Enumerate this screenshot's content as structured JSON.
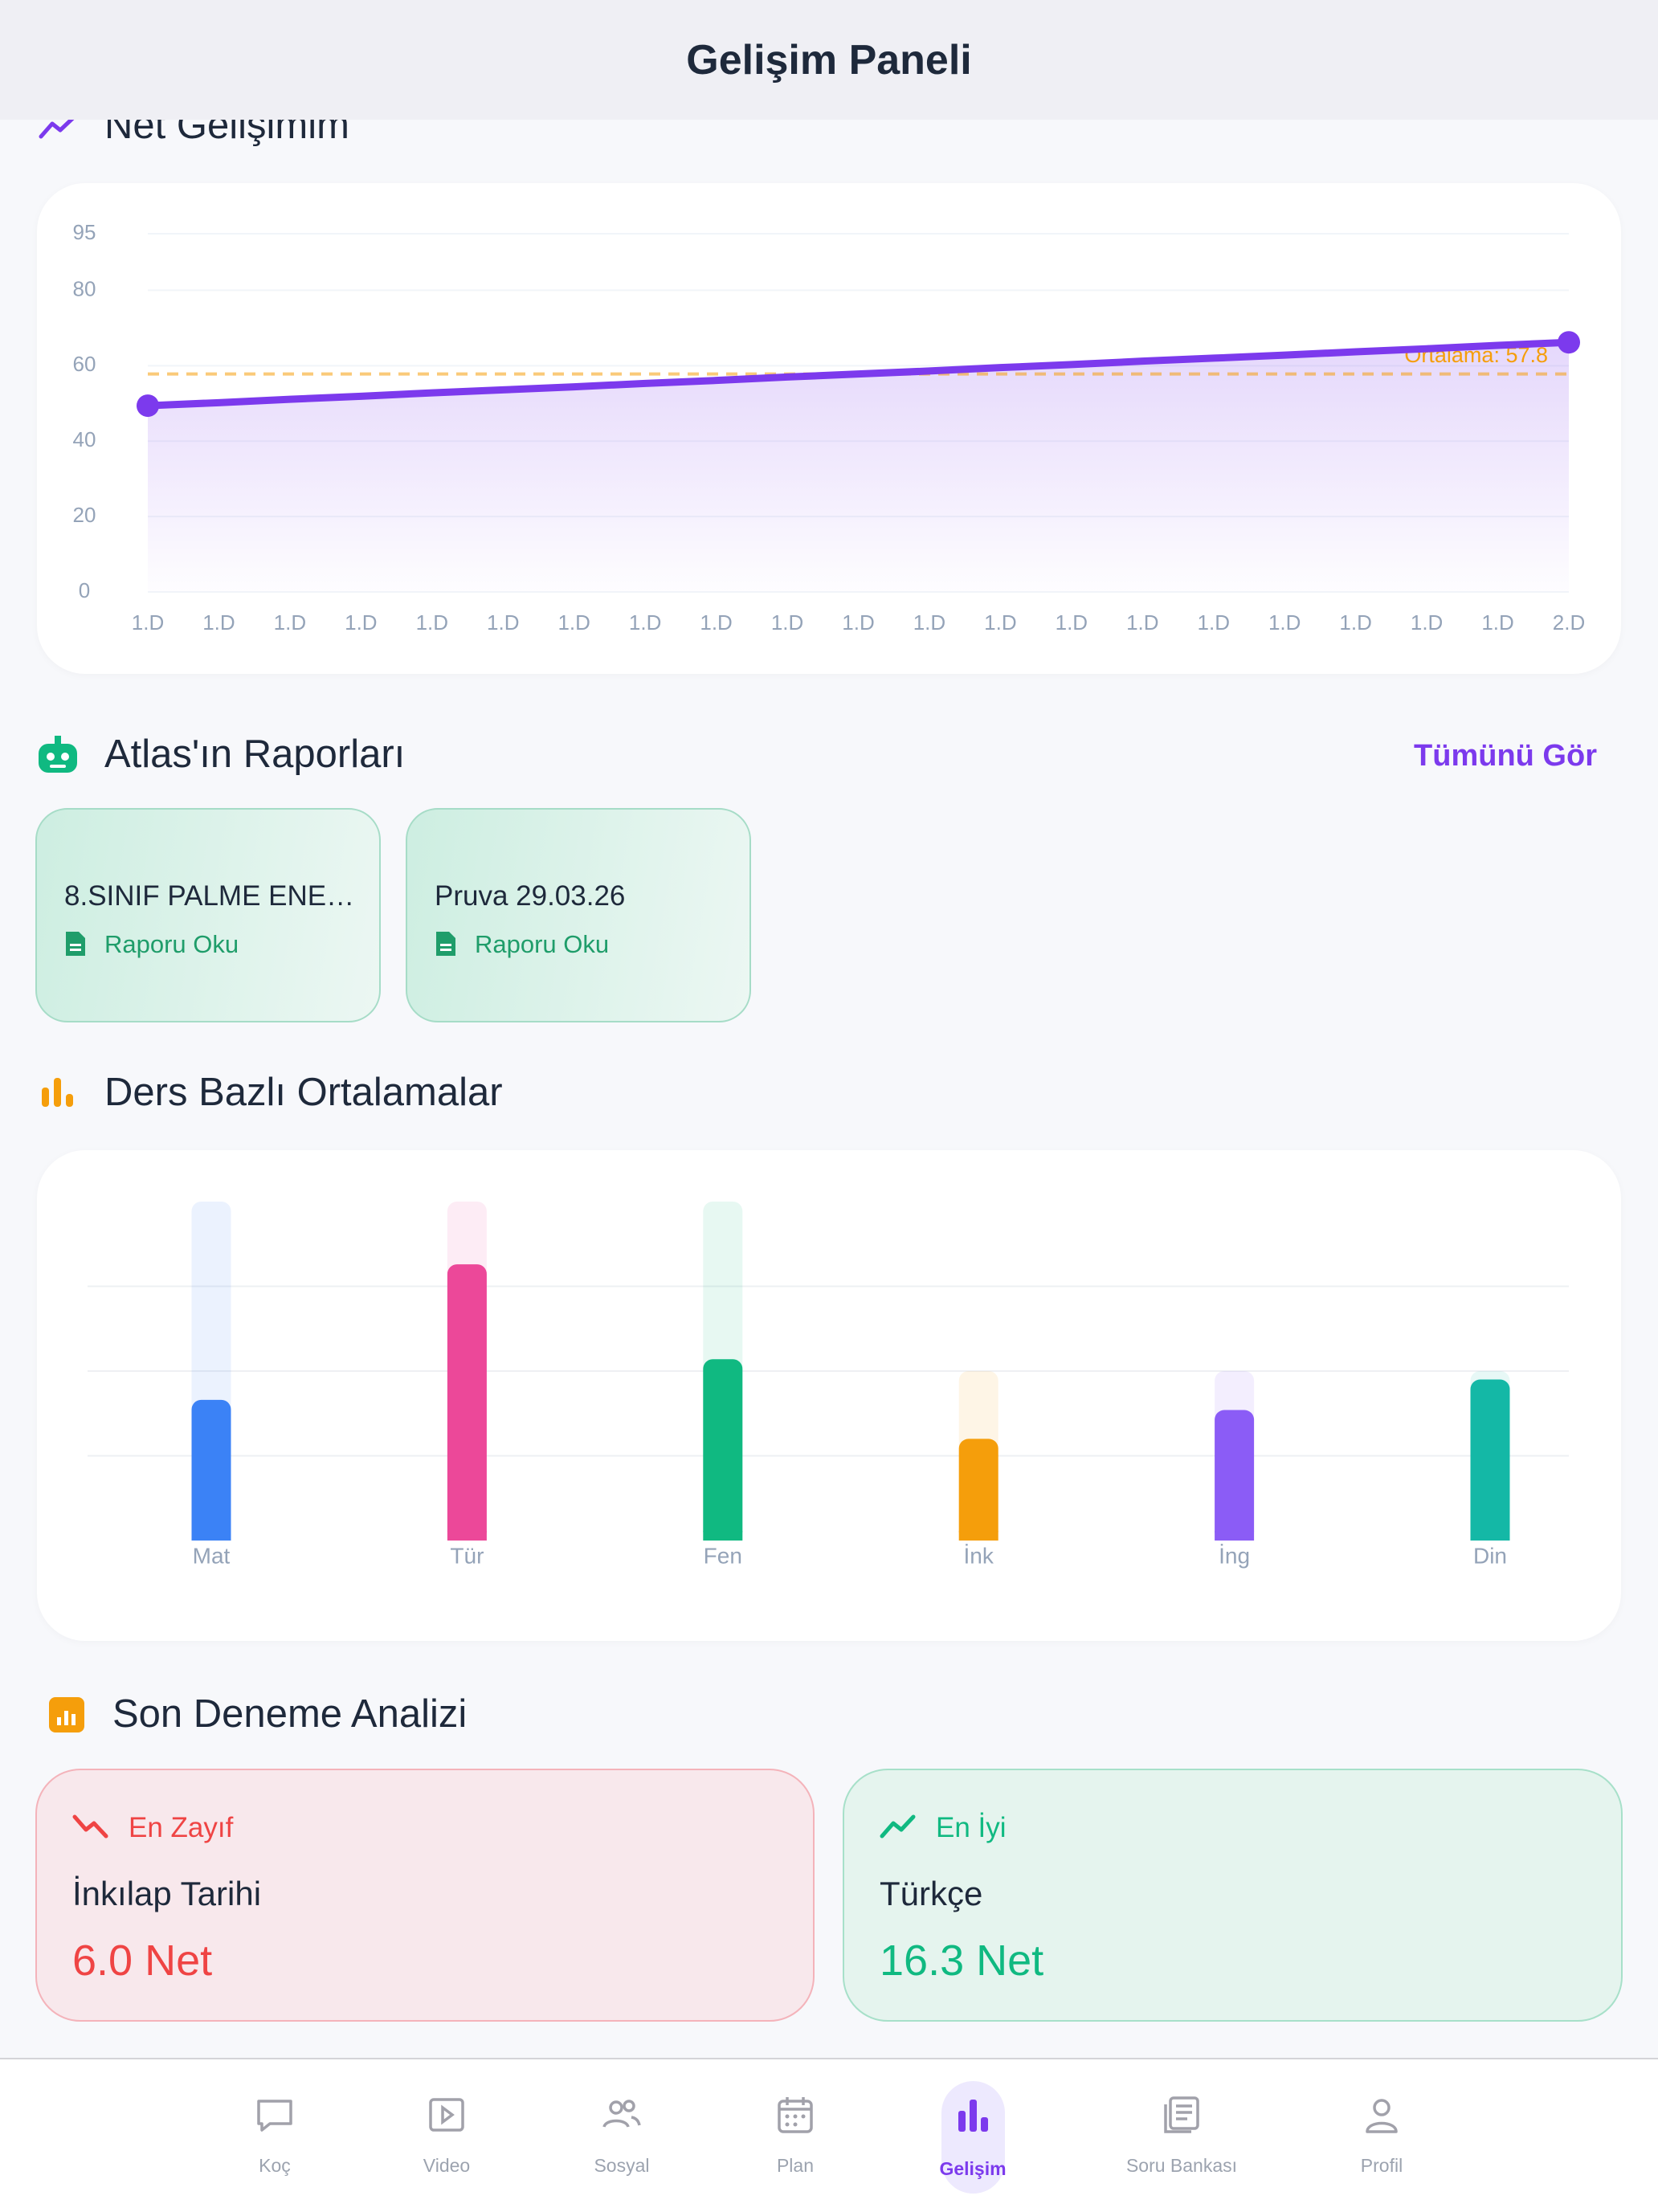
{
  "header": {
    "title": "Gelişim Paneli"
  },
  "sections": {
    "progress": "Net Gelişimim",
    "reports": "Atlas'ın Raporları",
    "subjects": "Ders Bazlı Ortalamalar",
    "analysis": "Son Deneme Analizi"
  },
  "reports": {
    "see_all": "Tümünü Gör",
    "items": [
      {
        "title": "8.SINIF PALME ENE…",
        "action": "Raporu Oku"
      },
      {
        "title": "Pruva 29.03.26",
        "action": "Raporu Oku"
      }
    ]
  },
  "chart_data": [
    {
      "type": "line",
      "categories": [
        "1.D",
        "1.D",
        "1.D",
        "1.D",
        "1.D",
        "1.D",
        "1.D",
        "1.D",
        "1.D",
        "1.D",
        "1.D",
        "1.D",
        "1.D",
        "1.D",
        "1.D",
        "1.D",
        "1.D",
        "1.D",
        "1.D",
        "1.D",
        "2.D"
      ],
      "values": [
        49.4,
        50.2,
        51.1,
        51.9,
        52.8,
        53.6,
        54.4,
        55.3,
        56.1,
        57.0,
        57.8,
        58.6,
        59.5,
        60.3,
        61.2,
        62.0,
        62.8,
        63.7,
        64.5,
        65.4,
        66.2
      ],
      "color": "#7c3aed",
      "ylim": [
        0,
        95
      ],
      "yticks": [
        0,
        20,
        40,
        60,
        80,
        95
      ],
      "grid": true,
      "average": {
        "value": 57.8,
        "label": "Ortalama: 57.8",
        "color": "#f59e0b"
      }
    },
    {
      "type": "bar",
      "categories": [
        "Mat",
        "Tür",
        "Fen",
        "İnk",
        "İng",
        "Din"
      ],
      "values": [
        8.3,
        16.3,
        10.7,
        6.0,
        7.7,
        9.5
      ],
      "max": [
        20,
        20,
        20,
        10,
        10,
        10
      ],
      "colors": [
        "#3b82f6",
        "#ec4899",
        "#10b981",
        "#f59e0b",
        "#8b5cf6",
        "#14b8a6"
      ],
      "ylim": [
        0,
        20
      ],
      "yticks": [
        0,
        5,
        10,
        15,
        20
      ],
      "grid": true
    }
  ],
  "analysis": {
    "weakest": {
      "label": "En Zayıf",
      "subject": "İnkılap Tarihi",
      "net": "6.0 Net"
    },
    "best": {
      "label": "En İyi",
      "subject": "Türkçe",
      "net": "16.3 Net"
    }
  },
  "tabs": {
    "items": [
      "Koç",
      "Video",
      "Sosyal",
      "Plan",
      "Gelişim",
      "Soru Bankası",
      "Profil"
    ],
    "active": 4
  }
}
